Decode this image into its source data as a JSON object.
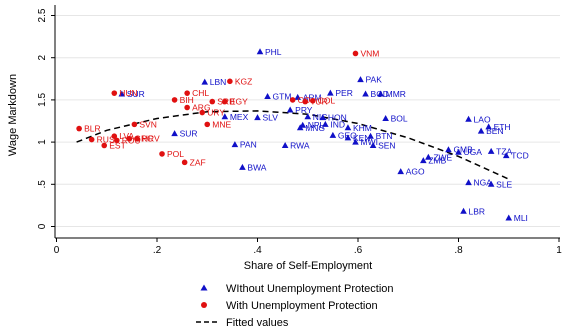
{
  "chart_data": {
    "type": "scatter",
    "xlabel": "Share of Self-Employment",
    "ylabel": "Wage Markdown",
    "xlim": [
      0,
      1
    ],
    "ylim": [
      0,
      2.5
    ],
    "xticks": [
      {
        "v": 0,
        "label": "0"
      },
      {
        "v": 0.2,
        "label": ".2"
      },
      {
        "v": 0.4,
        "label": ".4"
      },
      {
        "v": 0.6,
        "label": ".6"
      },
      {
        "v": 0.8,
        "label": ".8"
      },
      {
        "v": 1,
        "label": "1"
      }
    ],
    "yticks": [
      {
        "v": 0,
        "label": "0"
      },
      {
        "v": 0.5,
        "label": ".5"
      },
      {
        "v": 1,
        "label": "1"
      },
      {
        "v": 1.5,
        "label": "1.5"
      },
      {
        "v": 2,
        "label": "2"
      },
      {
        "v": 2.5,
        "label": "2.5"
      }
    ],
    "grid": "horizontal",
    "legend_position": "bottom",
    "colors": {
      "without": "#1010c8",
      "with": "#e01010",
      "fit": "#000000"
    },
    "series": [
      {
        "name": "WIthout Unemployment Protection",
        "marker": "triangle",
        "points": [
          {
            "label": "PHL",
            "x": 0.405,
            "y": 2.07
          },
          {
            "label": "LBN",
            "x": 0.295,
            "y": 1.71
          },
          {
            "label": "SUR",
            "x": 0.13,
            "y": 1.57
          },
          {
            "label": "GTM",
            "x": 0.42,
            "y": 1.54
          },
          {
            "label": "ARM",
            "x": 0.48,
            "y": 1.53
          },
          {
            "label": "PER",
            "x": 0.545,
            "y": 1.58
          },
          {
            "label": "PAK",
            "x": 0.605,
            "y": 1.74
          },
          {
            "label": "BGD",
            "x": 0.615,
            "y": 1.57
          },
          {
            "label": "MMR",
            "x": 0.645,
            "y": 1.57
          },
          {
            "label": "PRY",
            "x": 0.465,
            "y": 1.38
          },
          {
            "label": "MEX",
            "x": 0.335,
            "y": 1.3
          },
          {
            "label": "SLV",
            "x": 0.4,
            "y": 1.29
          },
          {
            "label": "NIC",
            "x": 0.5,
            "y": 1.3
          },
          {
            "label": "HON",
            "x": 0.53,
            "y": 1.29
          },
          {
            "label": "NPL",
            "x": 0.49,
            "y": 1.2
          },
          {
            "label": "MNG",
            "x": 0.485,
            "y": 1.17
          },
          {
            "label": "IND",
            "x": 0.535,
            "y": 1.21
          },
          {
            "label": "KHM",
            "x": 0.58,
            "y": 1.17
          },
          {
            "label": "BOL",
            "x": 0.655,
            "y": 1.28
          },
          {
            "label": "SUR",
            "x": 0.235,
            "y": 1.1
          },
          {
            "label": "GEO",
            "x": 0.55,
            "y": 1.08
          },
          {
            "label": "KEN",
            "x": 0.58,
            "y": 1.05
          },
          {
            "label": "BTN",
            "x": 0.625,
            "y": 1.07
          },
          {
            "label": "MWI",
            "x": 0.595,
            "y": 1.0
          },
          {
            "label": "SEN",
            "x": 0.63,
            "y": 0.96
          },
          {
            "label": "PAN",
            "x": 0.355,
            "y": 0.97
          },
          {
            "label": "RWA",
            "x": 0.455,
            "y": 0.96
          },
          {
            "label": "LAO",
            "x": 0.82,
            "y": 1.27
          },
          {
            "label": "ETH",
            "x": 0.86,
            "y": 1.18
          },
          {
            "label": "BEN",
            "x": 0.845,
            "y": 1.13
          },
          {
            "label": "GMB",
            "x": 0.78,
            "y": 0.91
          },
          {
            "label": "UGA",
            "x": 0.8,
            "y": 0.88
          },
          {
            "label": "TZA",
            "x": 0.865,
            "y": 0.89
          },
          {
            "label": "TCD",
            "x": 0.895,
            "y": 0.84
          },
          {
            "label": "ZWE",
            "x": 0.74,
            "y": 0.82
          },
          {
            "label": "ZMB",
            "x": 0.73,
            "y": 0.78
          },
          {
            "label": "AGO",
            "x": 0.685,
            "y": 0.65
          },
          {
            "label": "BWA",
            "x": 0.37,
            "y": 0.7
          },
          {
            "label": "NGA",
            "x": 0.82,
            "y": 0.52
          },
          {
            "label": "SLE",
            "x": 0.865,
            "y": 0.5
          },
          {
            "label": "LBR",
            "x": 0.81,
            "y": 0.18
          },
          {
            "label": "MLI",
            "x": 0.9,
            "y": 0.1
          }
        ]
      },
      {
        "name": "With Unemployment Protection",
        "marker": "circle",
        "points": [
          {
            "label": "VNM",
            "x": 0.595,
            "y": 2.05
          },
          {
            "label": "KGZ",
            "x": 0.345,
            "y": 1.72
          },
          {
            "label": "HUN",
            "x": 0.115,
            "y": 1.58
          },
          {
            "label": "CHL",
            "x": 0.26,
            "y": 1.58
          },
          {
            "label": "BIH",
            "x": 0.235,
            "y": 1.5
          },
          {
            "label": "EGY",
            "x": 0.335,
            "y": 1.48
          },
          {
            "label": "SRB",
            "x": 0.31,
            "y": 1.48
          },
          {
            "label": "ARG",
            "x": 0.26,
            "y": 1.41
          },
          {
            "label": "URY",
            "x": 0.29,
            "y": 1.35
          },
          {
            "label": "CO",
            "x": 0.47,
            "y": 1.5
          },
          {
            "label": "COL",
            "x": 0.51,
            "y": 1.49
          },
          {
            "label": "TUR",
            "x": 0.495,
            "y": 1.48
          },
          {
            "label": "MNE",
            "x": 0.3,
            "y": 1.21
          },
          {
            "label": "SVN",
            "x": 0.155,
            "y": 1.21
          },
          {
            "label": "BLR",
            "x": 0.045,
            "y": 1.16
          },
          {
            "label": "LVA",
            "x": 0.115,
            "y": 1.07
          },
          {
            "label": "GRC",
            "x": 0.145,
            "y": 1.04
          },
          {
            "label": "HRV",
            "x": 0.16,
            "y": 1.04
          },
          {
            "label": "RUS",
            "x": 0.07,
            "y": 1.03
          },
          {
            "label": "EST",
            "x": 0.095,
            "y": 0.96
          },
          {
            "label": "ROU",
            "x": 0.12,
            "y": 1.02
          },
          {
            "label": "POL",
            "x": 0.21,
            "y": 0.86
          },
          {
            "label": "ZAF",
            "x": 0.255,
            "y": 0.76
          }
        ]
      }
    ],
    "fitted": {
      "name": "Fitted values",
      "x": [
        0.04,
        0.1,
        0.2,
        0.3,
        0.4,
        0.5,
        0.6,
        0.7,
        0.8,
        0.9
      ],
      "y": [
        1.0,
        1.14,
        1.28,
        1.36,
        1.37,
        1.33,
        1.22,
        1.05,
        0.83,
        0.56
      ]
    }
  }
}
